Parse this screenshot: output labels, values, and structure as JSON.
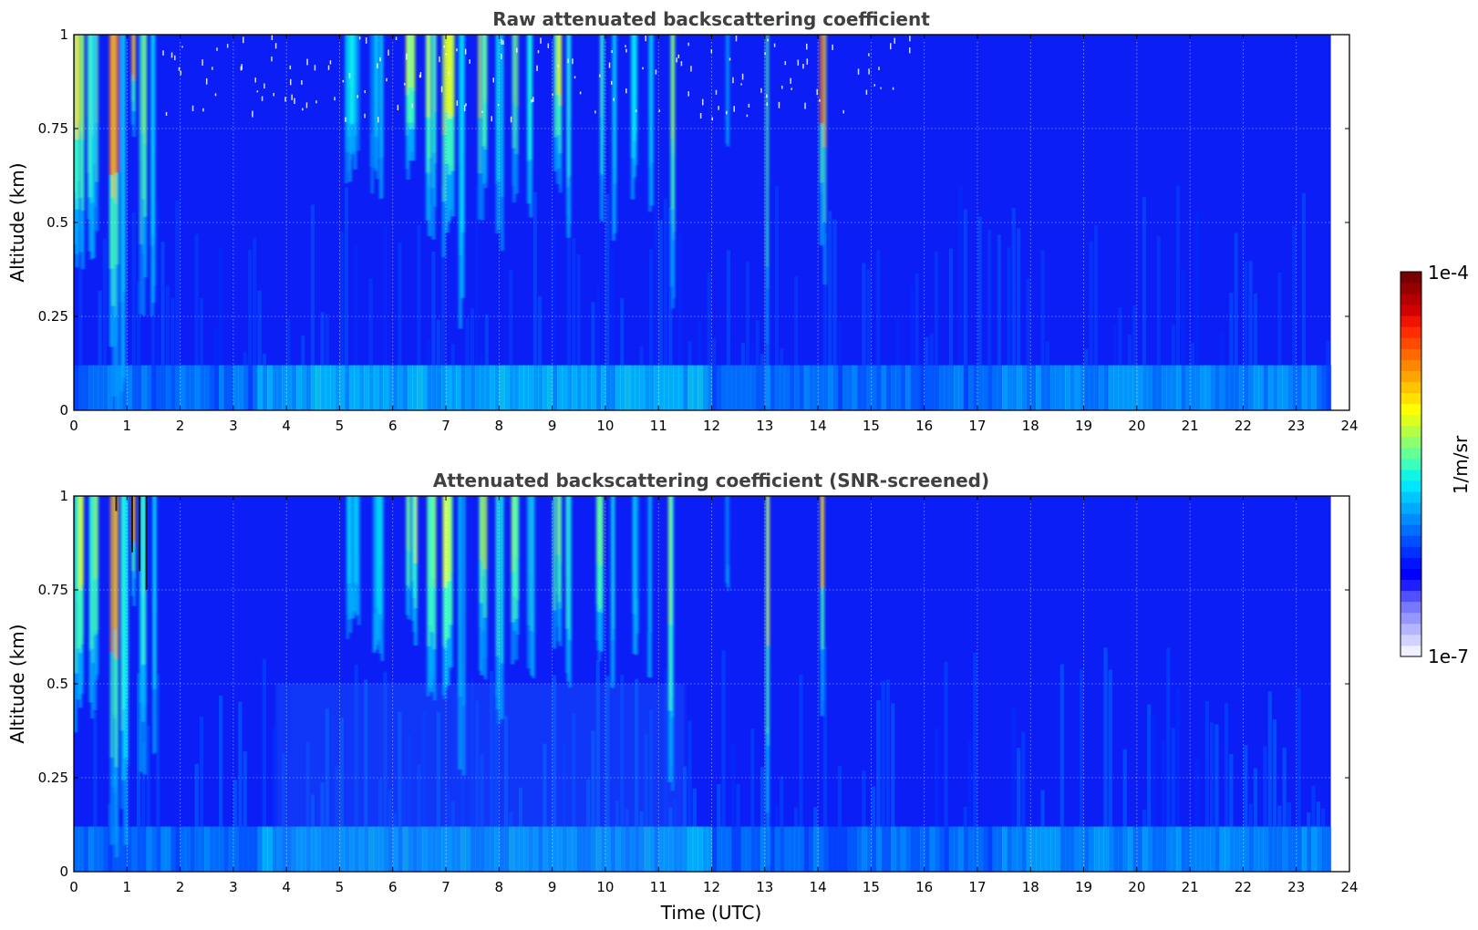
{
  "chart_data": [
    {
      "type": "heatmap",
      "title": "Raw attenuated backscattering coefficient",
      "xlabel": "",
      "ylabel": "Altitude (km)",
      "xlim": [
        0,
        24
      ],
      "ylim": [
        0,
        1
      ],
      "x_ticks": [
        "0",
        "1",
        "2",
        "3",
        "4",
        "5",
        "6",
        "7",
        "8",
        "9",
        "10",
        "11",
        "12",
        "13",
        "14",
        "15",
        "16",
        "17",
        "18",
        "19",
        "20",
        "21",
        "22",
        "23",
        "24"
      ],
      "y_ticks": [
        "0",
        "0.25",
        "0.5",
        "0.75",
        "1"
      ],
      "grid": true,
      "data_end_time": 23.65,
      "colorscale": "log",
      "plumes": [
        {
          "t": 0.1,
          "w": 0.18,
          "v": 0.65,
          "top": 1.0,
          "bot": 0.35
        },
        {
          "t": 0.35,
          "w": 0.18,
          "v": 0.55,
          "top": 1.0,
          "bot": 0.4
        },
        {
          "t": 0.75,
          "w": 0.14,
          "v": 0.82,
          "top": 1.0,
          "bot": 0.0
        },
        {
          "t": 0.95,
          "w": 0.1,
          "v": 0.5,
          "top": 1.0,
          "bot": 0.05
        },
        {
          "t": 1.1,
          "w": 0.08,
          "v": 0.92,
          "top": 1.0,
          "bot": 0.7
        },
        {
          "t": 1.3,
          "w": 0.1,
          "v": 0.55,
          "top": 1.0,
          "bot": 0.25
        },
        {
          "t": 1.5,
          "w": 0.07,
          "v": 0.5,
          "top": 1.0,
          "bot": 0.15
        },
        {
          "t": 5.25,
          "w": 0.25,
          "v": 0.45,
          "top": 1.0,
          "bot": 0.6
        },
        {
          "t": 5.7,
          "w": 0.22,
          "v": 0.45,
          "top": 1.0,
          "bot": 0.55
        },
        {
          "t": 6.35,
          "w": 0.2,
          "v": 0.62,
          "top": 1.0,
          "bot": 0.6
        },
        {
          "t": 6.75,
          "w": 0.2,
          "v": 0.6,
          "top": 1.0,
          "bot": 0.45
        },
        {
          "t": 7.05,
          "w": 0.18,
          "v": 0.65,
          "top": 1.0,
          "bot": 0.4
        },
        {
          "t": 7.3,
          "w": 0.08,
          "v": 0.45,
          "top": 1.0,
          "bot": 0.15
        },
        {
          "t": 7.7,
          "w": 0.15,
          "v": 0.6,
          "top": 1.0,
          "bot": 0.5
        },
        {
          "t": 8.0,
          "w": 0.12,
          "v": 0.48,
          "top": 1.0,
          "bot": 0.35
        },
        {
          "t": 8.3,
          "w": 0.1,
          "v": 0.55,
          "top": 1.0,
          "bot": 0.55
        },
        {
          "t": 8.6,
          "w": 0.12,
          "v": 0.5,
          "top": 1.0,
          "bot": 0.5
        },
        {
          "t": 9.1,
          "w": 0.12,
          "v": 0.6,
          "top": 1.0,
          "bot": 0.55
        },
        {
          "t": 9.3,
          "w": 0.1,
          "v": 0.5,
          "top": 1.0,
          "bot": 0.45
        },
        {
          "t": 9.9,
          "w": 0.12,
          "v": 0.58,
          "top": 1.0,
          "bot": 0.5
        },
        {
          "t": 10.15,
          "w": 0.08,
          "v": 0.48,
          "top": 1.0,
          "bot": 0.45
        },
        {
          "t": 10.55,
          "w": 0.1,
          "v": 0.45,
          "top": 1.0,
          "bot": 0.55
        },
        {
          "t": 10.85,
          "w": 0.08,
          "v": 0.45,
          "top": 1.0,
          "bot": 0.45
        },
        {
          "t": 11.25,
          "w": 0.1,
          "v": 0.55,
          "top": 1.0,
          "bot": 0.2
        },
        {
          "t": 12.3,
          "w": 0.05,
          "v": 0.38,
          "top": 1.0,
          "bot": 0.7
        },
        {
          "t": 13.05,
          "w": 0.05,
          "v": 0.62,
          "top": 1.0,
          "bot": 0.0
        },
        {
          "t": 14.1,
          "w": 0.07,
          "v": 0.78,
          "top": 1.0,
          "bot": 0.3
        }
      ]
    },
    {
      "type": "heatmap",
      "title": "Attenuated backscattering coefficient (SNR-screened)",
      "xlabel": "Time (UTC)",
      "ylabel": "Altitude (km)",
      "xlim": [
        0,
        24
      ],
      "ylim": [
        0,
        1
      ],
      "x_ticks": [
        "0",
        "1",
        "2",
        "3",
        "4",
        "5",
        "6",
        "7",
        "8",
        "9",
        "10",
        "11",
        "12",
        "13",
        "14",
        "15",
        "16",
        "17",
        "18",
        "19",
        "20",
        "21",
        "22",
        "23",
        "24"
      ],
      "y_ticks": [
        "0",
        "0.25",
        "0.5",
        "0.75",
        "1"
      ],
      "grid": true,
      "data_end_time": 23.65,
      "colorscale": "log"
    }
  ],
  "colorbar": {
    "label": "1/m/sr",
    "max_label": "1e-4",
    "min_label": "1e-7",
    "colors": [
      "#efefff",
      "#d2d2ff",
      "#b4b4ff",
      "#9696ff",
      "#7878ff",
      "#5050ff",
      "#1e1eff",
      "#0000ff",
      "#0014ff",
      "#0032ff",
      "#0050ff",
      "#006eff",
      "#008cff",
      "#00aaff",
      "#00c8ff",
      "#00e6ff",
      "#10f5e6",
      "#3cffbe",
      "#64ff96",
      "#8cff6e",
      "#b4ff46",
      "#dcff1e",
      "#ffff00",
      "#ffe100",
      "#ffc300",
      "#ffa500",
      "#ff8700",
      "#ff6900",
      "#ff4b00",
      "#ff2d00",
      "#f01400",
      "#d20000",
      "#b40000",
      "#960000",
      "#780000"
    ]
  }
}
